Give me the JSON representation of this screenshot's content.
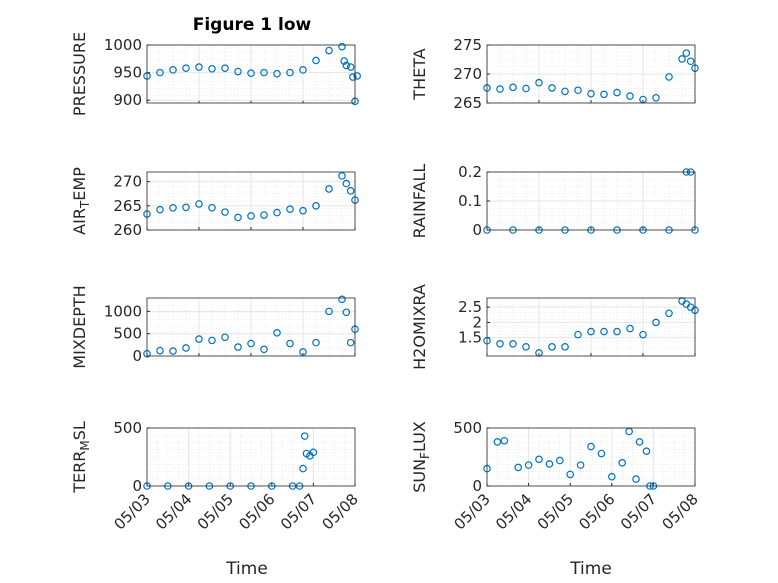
{
  "figure": {
    "title": "Figure 1 low",
    "marker_color": "#0072BD",
    "axis_color": "#262626",
    "grid_color": "#e6e6e6"
  },
  "chart_data": [
    {
      "type": "scatter",
      "title": "Figure 1 low",
      "ylabel": "PRESSURE",
      "ylim": [
        895,
        1000
      ],
      "yticks": [
        900,
        950,
        1000
      ],
      "xlim": [
        "05/03",
        "05/07"
      ],
      "xticks": [
        "05/03",
        "05/04",
        "05/05",
        "05/06",
        "05/07"
      ],
      "grid": true,
      "x": [
        "05/03 00:00",
        "05/03 06:00",
        "05/03 12:00",
        "05/03 18:00",
        "05/04 00:00",
        "05/04 06:00",
        "05/04 12:00",
        "05/04 18:00",
        "05/05 00:00",
        "05/05 06:00",
        "05/05 12:00",
        "05/05 18:00",
        "05/06 00:00",
        "05/06 06:00",
        "05/06 12:00",
        "05/06 18:00",
        "05/06 19:00",
        "05/06 20:00",
        "05/06 22:00",
        "05/06 23:00",
        "05/07 00:00",
        "05/07 01:00"
      ],
      "y": [
        944,
        950,
        955,
        958,
        960,
        957,
        958,
        952,
        949,
        950,
        948,
        950,
        955,
        972,
        990,
        997,
        971,
        963,
        960,
        942,
        898,
        944
      ]
    },
    {
      "type": "scatter",
      "ylabel": "THETA",
      "ylim": [
        265,
        275
      ],
      "yticks": [
        265,
        270,
        275
      ],
      "xlim": [
        "05/03",
        "05/07"
      ],
      "xticks": [
        "05/03",
        "05/04",
        "05/05",
        "05/06",
        "05/07"
      ],
      "grid": true,
      "x": [
        "05/03 00:00",
        "05/03 06:00",
        "05/03 12:00",
        "05/03 18:00",
        "05/04 00:00",
        "05/04 06:00",
        "05/04 12:00",
        "05/04 18:00",
        "05/05 00:00",
        "05/05 06:00",
        "05/05 12:00",
        "05/05 18:00",
        "05/06 00:00",
        "05/06 06:00",
        "05/06 12:00",
        "05/06 18:00",
        "05/06 20:00",
        "05/06 22:00",
        "05/07 00:00"
      ],
      "y": [
        267.6,
        267.4,
        267.7,
        267.5,
        268.5,
        267.6,
        267.0,
        267.2,
        266.6,
        266.5,
        266.8,
        266.2,
        265.6,
        265.9,
        269.5,
        272.6,
        273.6,
        272.2,
        271.0
      ]
    },
    {
      "type": "scatter",
      "ylabel": "AIR_TEMP",
      "ylim": [
        260,
        272
      ],
      "yticks": [
        260,
        265,
        270
      ],
      "xlim": [
        "05/03",
        "05/07"
      ],
      "xticks": [
        "05/03",
        "05/04",
        "05/05",
        "05/06",
        "05/07"
      ],
      "grid": true,
      "x": [
        "05/03 00:00",
        "05/03 06:00",
        "05/03 12:00",
        "05/03 18:00",
        "05/04 00:00",
        "05/04 06:00",
        "05/04 12:00",
        "05/04 18:00",
        "05/05 00:00",
        "05/05 06:00",
        "05/05 12:00",
        "05/05 18:00",
        "05/06 00:00",
        "05/06 06:00",
        "05/06 12:00",
        "05/06 18:00",
        "05/06 20:00",
        "05/06 22:00",
        "05/07 00:00"
      ],
      "y": [
        263.3,
        264.2,
        264.6,
        264.7,
        265.4,
        264.6,
        263.7,
        262.6,
        262.9,
        263.1,
        263.6,
        264.3,
        264.0,
        265.0,
        268.5,
        271.2,
        269.6,
        268.1,
        266.2
      ]
    },
    {
      "type": "scatter",
      "ylabel": "RAINFALL",
      "ylim": [
        0,
        0.2
      ],
      "yticks": [
        0,
        0.1,
        0.2
      ],
      "xlim": [
        "05/03",
        "05/07"
      ],
      "xticks": [
        "05/03",
        "05/04",
        "05/05",
        "05/06",
        "05/07"
      ],
      "grid": true,
      "x": [
        "05/03 00:00",
        "05/03 12:00",
        "05/04 00:00",
        "05/04 12:00",
        "05/05 00:00",
        "05/05 12:00",
        "05/06 00:00",
        "05/06 12:00",
        "05/06 20:00",
        "05/06 22:00",
        "05/07 00:00"
      ],
      "y": [
        0,
        0,
        0,
        0,
        0,
        0,
        0,
        0,
        0.2,
        0.2,
        0
      ]
    },
    {
      "type": "scatter",
      "ylabel": "MIXDEPTH",
      "ylim": [
        0,
        1300
      ],
      "yticks": [
        0,
        500,
        1000
      ],
      "xlim": [
        "05/03",
        "05/07"
      ],
      "xticks": [
        "05/03",
        "05/04",
        "05/05",
        "05/06",
        "05/07"
      ],
      "grid": true,
      "x": [
        "05/03 00:00",
        "05/03 06:00",
        "05/03 12:00",
        "05/03 18:00",
        "05/04 00:00",
        "05/04 06:00",
        "05/04 12:00",
        "05/04 18:00",
        "05/05 00:00",
        "05/05 06:00",
        "05/05 12:00",
        "05/05 18:00",
        "05/06 00:00",
        "05/06 06:00",
        "05/06 12:00",
        "05/06 18:00",
        "05/06 20:00",
        "05/06 22:00",
        "05/07 00:00"
      ],
      "y": [
        50,
        120,
        110,
        180,
        380,
        350,
        420,
        200,
        280,
        150,
        520,
        280,
        90,
        300,
        1000,
        1270,
        980,
        300,
        600
      ]
    },
    {
      "type": "scatter",
      "ylabel": "H2OMIXRA",
      "ylim": [
        0.9,
        2.8
      ],
      "yticks": [
        1.5,
        2,
        2.5
      ],
      "xlim": [
        "05/03",
        "05/07"
      ],
      "xticks": [
        "05/03",
        "05/04",
        "05/05",
        "05/06",
        "05/07"
      ],
      "grid": true,
      "x": [
        "05/03 00:00",
        "05/03 06:00",
        "05/03 12:00",
        "05/03 18:00",
        "05/04 00:00",
        "05/04 06:00",
        "05/04 12:00",
        "05/04 18:00",
        "05/05 00:00",
        "05/05 06:00",
        "05/05 12:00",
        "05/05 18:00",
        "05/06 00:00",
        "05/06 06:00",
        "05/06 12:00",
        "05/06 18:00",
        "05/06 20:00",
        "05/06 22:00",
        "05/07 00:00"
      ],
      "y": [
        1.4,
        1.3,
        1.3,
        1.2,
        1.0,
        1.2,
        1.2,
        1.6,
        1.7,
        1.7,
        1.7,
        1.8,
        1.6,
        2.0,
        2.3,
        2.7,
        2.6,
        2.5,
        2.4
      ]
    },
    {
      "type": "scatter",
      "ylabel": "TERR_MSL",
      "xlabel": "Time",
      "ylim": [
        0,
        500
      ],
      "yticks": [
        0,
        500
      ],
      "xlim": [
        "05/03",
        "05/08"
      ],
      "xticks": [
        "05/03",
        "05/04",
        "05/05",
        "05/06",
        "05/07",
        "05/08"
      ],
      "grid": true,
      "x": [
        "05/03 00:00",
        "05/03 12:00",
        "05/04 00:00",
        "05/04 12:00",
        "05/05 00:00",
        "05/05 12:00",
        "05/06 00:00",
        "05/06 12:00",
        "05/06 16:00",
        "05/06 18:00",
        "05/06 19:00",
        "05/06 20:00",
        "05/06 22:00",
        "05/07 00:00"
      ],
      "y": [
        0,
        0,
        0,
        0,
        0,
        0,
        0,
        0,
        0,
        150,
        430,
        280,
        260,
        290
      ]
    },
    {
      "type": "scatter",
      "ylabel": "SUN_FLUX",
      "xlabel": "Time",
      "ylim": [
        0,
        500
      ],
      "yticks": [
        0,
        500
      ],
      "xlim": [
        "05/03",
        "05/08"
      ],
      "xticks": [
        "05/03",
        "05/04",
        "05/05",
        "05/06",
        "05/07",
        "05/08"
      ],
      "grid": true,
      "x": [
        "05/03 00:00",
        "05/03 06:00",
        "05/03 10:00",
        "05/03 18:00",
        "05/04 00:00",
        "05/04 06:00",
        "05/04 12:00",
        "05/04 18:00",
        "05/05 00:00",
        "05/05 06:00",
        "05/05 12:00",
        "05/05 18:00",
        "05/06 00:00",
        "05/06 06:00",
        "05/06 10:00",
        "05/06 14:00",
        "05/06 16:00",
        "05/06 20:00",
        "05/06 22:00",
        "05/07 00:00"
      ],
      "y": [
        150,
        380,
        390,
        160,
        180,
        230,
        190,
        220,
        100,
        180,
        340,
        280,
        80,
        200,
        470,
        60,
        380,
        300,
        0,
        0
      ]
    }
  ]
}
